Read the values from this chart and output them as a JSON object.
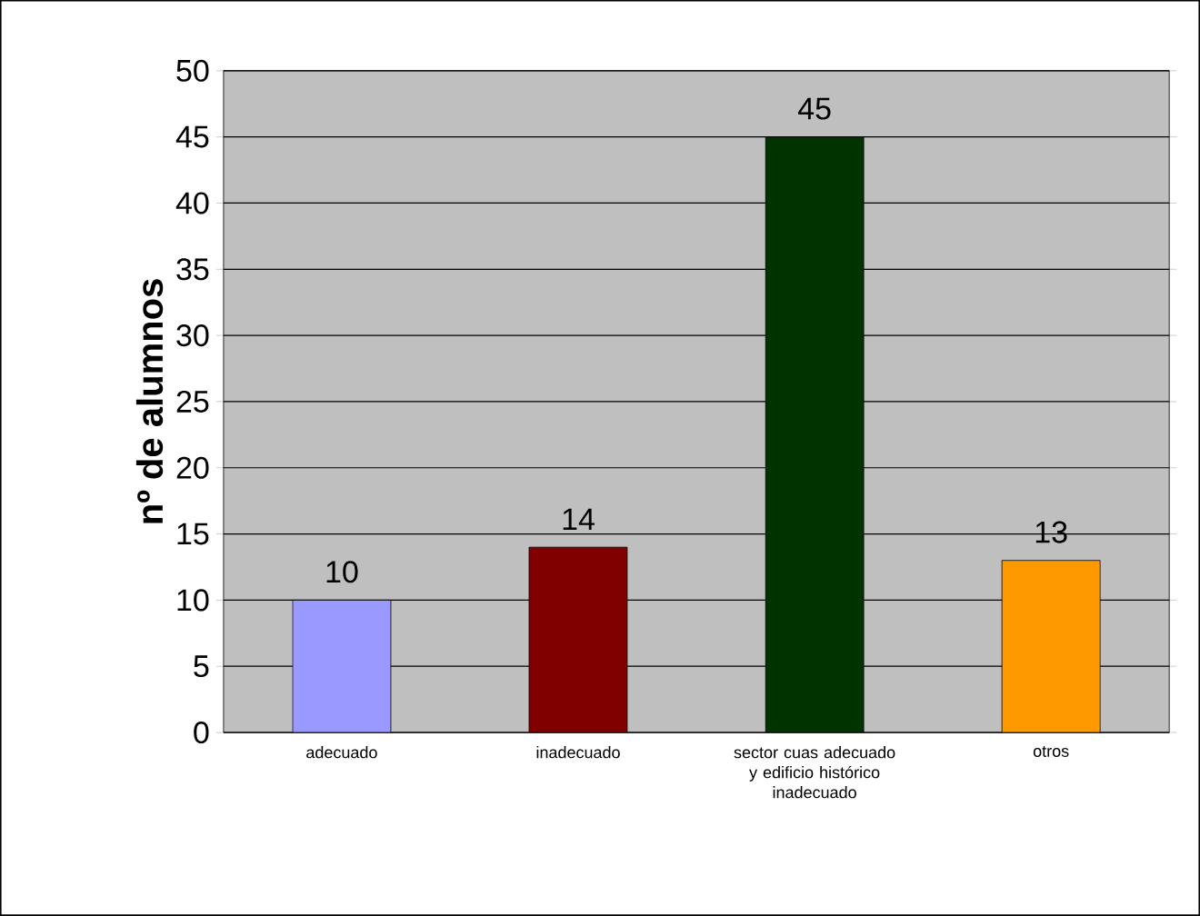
{
  "chart_data": {
    "type": "bar",
    "ylabel": "nº de alumnos",
    "categories": [
      "adecuado",
      "inadecuado",
      "sector cuas adecuado y edificio histórico inadecuado",
      "otros"
    ],
    "values": [
      10,
      14,
      45,
      13
    ],
    "colors": [
      "#9999ff",
      "#800000",
      "#003300",
      "#ff9900"
    ],
    "ylim": [
      0,
      50
    ],
    "yticks": [
      0,
      5,
      10,
      15,
      20,
      25,
      30,
      35,
      40,
      45,
      50
    ],
    "grid": "y",
    "data_labels": true
  }
}
